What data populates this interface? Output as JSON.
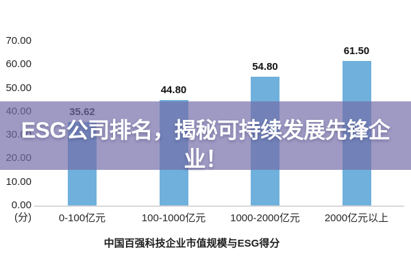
{
  "banner": {
    "text": "ESG公司排名，揭秘可持续发展先锋企业！",
    "line1": "ESG公司排名，揭秘可持续发展先锋企",
    "line2": "业！",
    "overlay_color": "rgba(116,108,168,0.69)",
    "text_color": "#ffffff"
  },
  "chart_data": {
    "type": "bar",
    "title": "中国百强科技企业市值规模与ESG得分",
    "xlabel": "",
    "ylabel": "(分)",
    "categories": [
      "0-100亿元",
      "100-1000亿元",
      "1000-2000亿元",
      "2000亿元以上"
    ],
    "values": [
      35.62,
      44.8,
      54.8,
      61.5
    ],
    "value_labels": [
      "35.62",
      "44.80",
      "54.80",
      "61.50"
    ],
    "ylim": [
      0,
      70
    ],
    "ytick_labels": [
      "70.00",
      "60.00",
      "50.00",
      "40.00",
      "30.00",
      "20.00",
      "10.00",
      "0.00"
    ],
    "ytick_values": [
      70,
      60,
      50,
      40,
      30,
      20,
      10,
      0
    ],
    "bar_color": "#6fb0dc",
    "grid": false,
    "legend": "none"
  }
}
